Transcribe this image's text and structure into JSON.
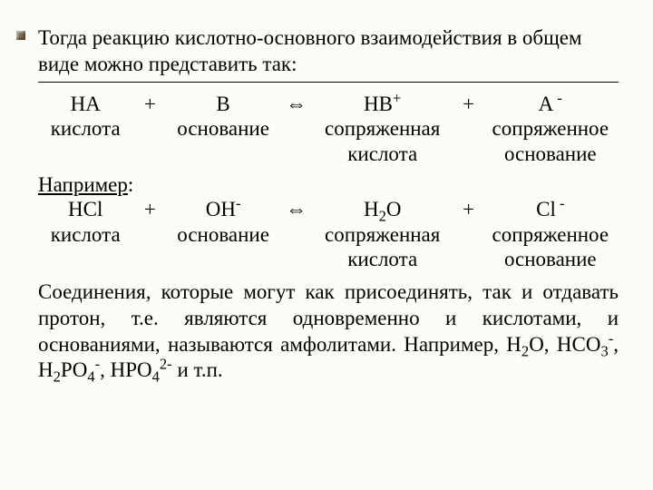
{
  "colors": {
    "background": "#fdfdf8",
    "text": "#000000",
    "bullet": "#7a6a52"
  },
  "fonts": {
    "body": "Times New Roman",
    "size_pt": 18
  },
  "intro": "Тогда реакцию кислотно-основного взаимодействия в общем виде можно представить так:",
  "general": {
    "r1": {
      "a": "HA",
      "plus": "+",
      "b": "B",
      "arr": "⇔",
      "c_pre": "HB",
      "c_sup": "+",
      "plus2": "+",
      "d_pre": "A",
      "d_sup": " -"
    },
    "r2": {
      "a": "кислота",
      "b": "основание",
      "c": "сопряженная",
      "d": "сопряженное"
    },
    "r3": {
      "c": "кислота",
      "d": "основание"
    }
  },
  "example_label": "Например",
  "example_colon": ":",
  "example": {
    "r1": {
      "a": "HCl",
      "plus": "+",
      "b_pre": "OH",
      "b_sup": "-",
      "arr": "⇔",
      "c_pre": "H",
      "c_sub": "2",
      "c_post": "O",
      "plus2": "+",
      "d_pre": "Cl",
      "d_sup": " -"
    },
    "r2": {
      "a": "кислота",
      "b": "основание",
      "c": "сопряженная",
      "d": "сопряженное"
    },
    "r3": {
      "c": "кислота",
      "d": "основание"
    }
  },
  "closing_parts": {
    "t1": "Соединения, которые могут как присоединять, так и отдавать протон, т.е. являются одновременно и кислотами, и основаниями, называются амфолитами. Например, H",
    "sub1": "2",
    "t2": "O, HCO",
    "sub2": "3",
    "sup2": "-",
    "t3": ", H",
    "sub3": "2",
    "t4": "PO",
    "sub4": "4",
    "sup4": "-",
    "t5": ", HPO",
    "sub5": "4",
    "sup5": "2-",
    "t6": " и т.п."
  }
}
